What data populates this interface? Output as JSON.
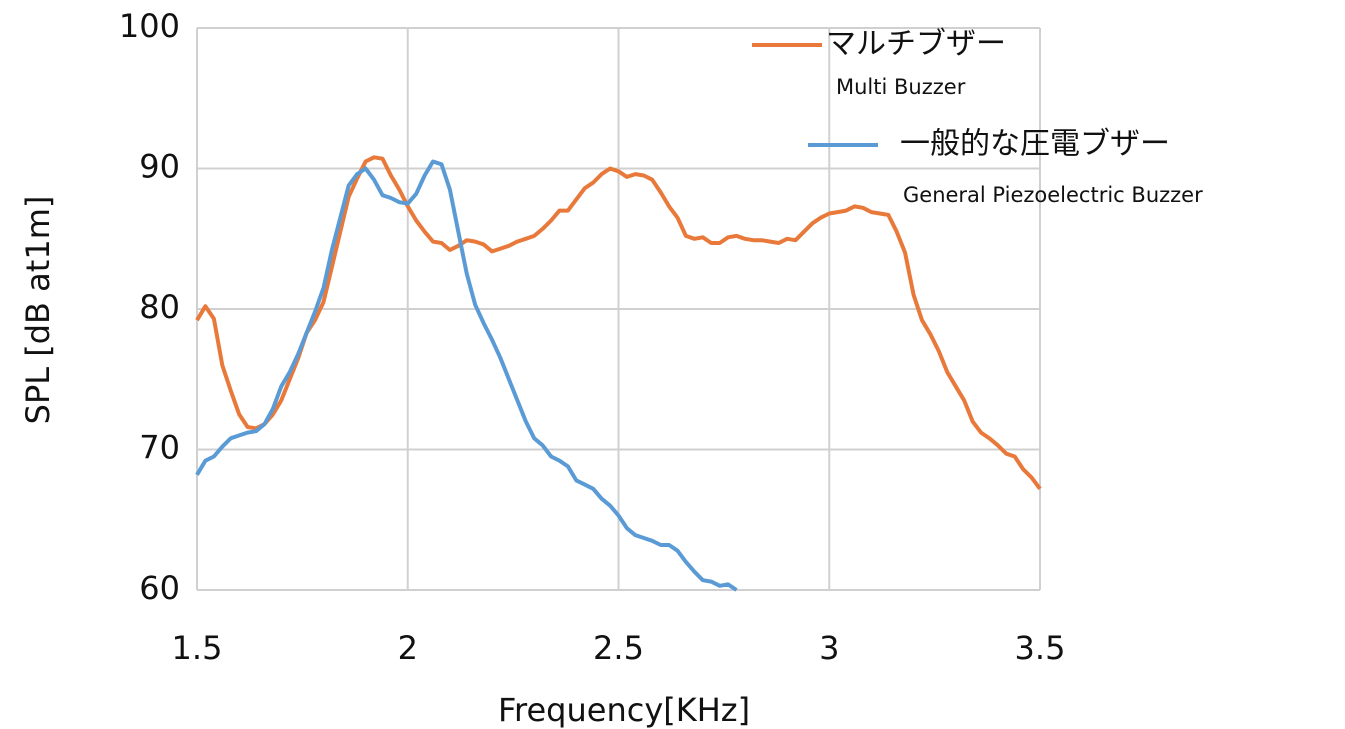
{
  "chart_data": {
    "type": "line",
    "x_label": "Frequency[KHz]",
    "y_label": "SPL [dB at1m]",
    "xlim": [
      1.5,
      3.5
    ],
    "xticks": [
      {
        "value": 1.5,
        "label": "1.5"
      },
      2,
      2.5,
      3,
      3.5
    ],
    "ylim": [
      60,
      100
    ],
    "yticks": [
      60,
      70,
      80,
      90,
      100
    ],
    "grid": true,
    "legend": "top-right",
    "x": [
      1.5,
      1.52,
      1.54,
      1.56,
      1.58,
      1.6,
      1.62,
      1.64,
      1.66,
      1.68,
      1.7,
      1.72,
      1.74,
      1.76,
      1.78,
      1.8,
      1.82,
      1.84,
      1.86,
      1.88,
      1.9,
      1.92,
      1.94,
      1.96,
      1.98,
      2.0,
      2.02,
      2.04,
      2.06,
      2.08,
      2.1,
      2.12,
      2.14,
      2.16,
      2.18,
      2.2,
      2.22,
      2.24,
      2.26,
      2.28,
      2.3,
      2.32,
      2.34,
      2.36,
      2.38,
      2.4,
      2.42,
      2.44,
      2.46,
      2.48,
      2.5,
      2.52,
      2.54,
      2.56,
      2.58,
      2.6,
      2.62,
      2.64,
      2.66,
      2.68,
      2.7,
      2.72,
      2.74,
      2.76,
      2.78,
      2.8,
      2.82,
      2.84,
      2.86,
      2.88,
      2.9,
      2.92,
      2.94,
      2.96,
      2.98,
      3.0,
      3.02,
      3.04,
      3.06,
      3.08,
      3.1,
      3.12,
      3.14,
      3.16,
      3.18,
      3.2,
      3.22,
      3.24,
      3.26,
      3.28,
      3.3,
      3.32,
      3.34,
      3.36,
      3.38,
      3.4,
      3.42,
      3.44,
      3.46,
      3.48,
      3.5
    ],
    "series": [
      {
        "name": "マルチブザー",
        "subtitle": "Multi Buzzer",
        "color": "#e8793a",
        "values": [
          79.2,
          80.2,
          79.3,
          76,
          74.2,
          72.5,
          71.6,
          71.5,
          71.8,
          72.5,
          73.5,
          75,
          76.5,
          78.3,
          79.2,
          80.5,
          83,
          85.5,
          88,
          89.3,
          90.5,
          90.8,
          90.7,
          89.5,
          88.5,
          87.3,
          86.3,
          85.5,
          84.8,
          84.7,
          84.2,
          84.5,
          84.9,
          84.8,
          84.6,
          84.1,
          84.3,
          84.5,
          84.8,
          85,
          85.2,
          85.7,
          86.3,
          87,
          87,
          87.8,
          88.6,
          89,
          89.6,
          90,
          89.8,
          89.4,
          89.6,
          89.5,
          89.2,
          88.3,
          87.3,
          86.5,
          85.2,
          85,
          85.1,
          84.7,
          84.7,
          85.1,
          85.2,
          85,
          84.9,
          84.9,
          84.8,
          84.7,
          85,
          84.9,
          85.5,
          86.1,
          86.5,
          86.8,
          86.9,
          87,
          87.3,
          87.2,
          86.9,
          86.8,
          86.7,
          85.5,
          84,
          81,
          79.2,
          78.2,
          77,
          75.5,
          74.5,
          73.5,
          72,
          71.2,
          70.8,
          70.3,
          69.7,
          69.5,
          68.6,
          68,
          67.2
        ]
      },
      {
        "name": "一般的な圧電ブザー",
        "subtitle": "General Piezoelectric Buzzer",
        "color": "#5b9bd5",
        "values": [
          68.2,
          69.2,
          69.5,
          70.2,
          70.8,
          71,
          71.2,
          71.3,
          71.8,
          72.9,
          74.5,
          75.5,
          76.8,
          78.3,
          79.8,
          81.5,
          84.2,
          86.5,
          88.8,
          89.6,
          90,
          89.2,
          88.1,
          87.9,
          87.6,
          87.5,
          88.2,
          89.5,
          90.5,
          90.3,
          88.5,
          85.5,
          82.5,
          80.3,
          79,
          77.8,
          76.5,
          75,
          73.5,
          72,
          70.8,
          70.3,
          69.5,
          69.2,
          68.8,
          67.8,
          67.5,
          67.2,
          66.5,
          66,
          65.3,
          64.4,
          63.9,
          63.7,
          63.5,
          63.2,
          63.2,
          62.8,
          62,
          61.3,
          60.7,
          60.6,
          60.3,
          60.4,
          60,
          null,
          null,
          null,
          null,
          null,
          null,
          null,
          null,
          null,
          null,
          null,
          null,
          null,
          null,
          null,
          null,
          null,
          null,
          null,
          null,
          null,
          null,
          null,
          null,
          null,
          null,
          null,
          null,
          null,
          null,
          null,
          null,
          null,
          null,
          null,
          null
        ]
      }
    ]
  }
}
